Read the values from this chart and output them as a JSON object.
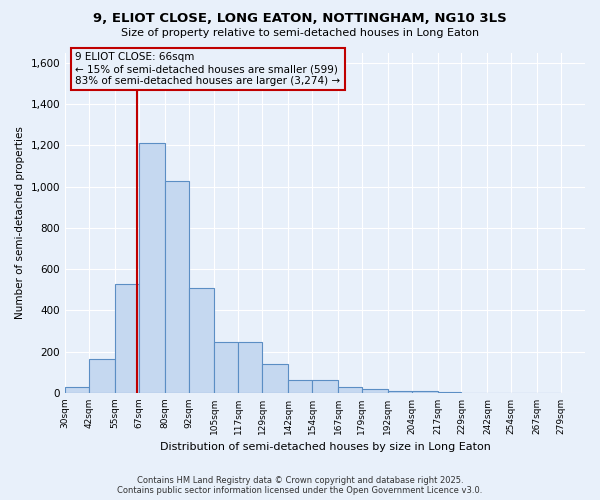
{
  "title": "9, ELIOT CLOSE, LONG EATON, NOTTINGHAM, NG10 3LS",
  "subtitle": "Size of property relative to semi-detached houses in Long Eaton",
  "xlabel": "Distribution of semi-detached houses by size in Long Eaton",
  "ylabel": "Number of semi-detached properties",
  "bin_labels": [
    "30sqm",
    "42sqm",
    "55sqm",
    "67sqm",
    "80sqm",
    "92sqm",
    "105sqm",
    "117sqm",
    "129sqm",
    "142sqm",
    "154sqm",
    "167sqm",
    "179sqm",
    "192sqm",
    "204sqm",
    "217sqm",
    "229sqm",
    "242sqm",
    "254sqm",
    "267sqm",
    "279sqm"
  ],
  "bin_edges": [
    30,
    42,
    55,
    67,
    80,
    92,
    105,
    117,
    129,
    142,
    154,
    167,
    179,
    192,
    204,
    217,
    229,
    242,
    254,
    267,
    279
  ],
  "bar_heights": [
    30,
    165,
    530,
    1210,
    1025,
    510,
    245,
    245,
    140,
    65,
    65,
    30,
    20,
    10,
    10,
    5,
    0,
    0,
    0,
    0
  ],
  "bar_color": "#c5d8f0",
  "bar_edge_color": "#5b8ec4",
  "property_line_x": 66,
  "vline_color": "#c00000",
  "annotation_text": "9 ELIOT CLOSE: 66sqm\n← 15% of semi-detached houses are smaller (599)\n83% of semi-detached houses are larger (3,274) →",
  "ylim": [
    0,
    1650
  ],
  "yticks": [
    0,
    200,
    400,
    600,
    800,
    1000,
    1200,
    1400,
    1600
  ],
  "background_color": "#e8f0fa",
  "grid_color": "#ffffff",
  "footer_line1": "Contains HM Land Registry data © Crown copyright and database right 2025.",
  "footer_line2": "Contains public sector information licensed under the Open Government Licence v3.0."
}
